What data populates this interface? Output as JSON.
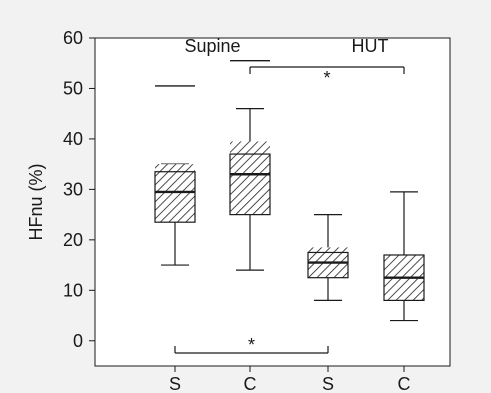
{
  "chart_data": {
    "type": "box",
    "ylabel": "HFnu (%)",
    "ylim": [
      -5,
      60
    ],
    "yticks": [
      0,
      10,
      20,
      30,
      40,
      50,
      60
    ],
    "categories": [
      "S",
      "C",
      "S",
      "C"
    ],
    "groups": [
      {
        "label": "Supine",
        "categories": [
          0,
          1
        ]
      },
      {
        "label": "HUT",
        "categories": [
          2,
          3
        ]
      }
    ],
    "boxes": [
      {
        "category": "S",
        "whisker_low": 15,
        "q1": 23.5,
        "median": 29.5,
        "q3": 33.5,
        "whisker_high": 35,
        "ci_low": 24,
        "ci_high": 35,
        "outliers": [
          50.5
        ]
      },
      {
        "category": "C",
        "whisker_low": 14,
        "q1": 25,
        "median": 33,
        "q3": 37,
        "whisker_high": 46,
        "ci_low": 26.5,
        "ci_high": 39.5,
        "outliers": [
          55.5
        ]
      },
      {
        "category": "S",
        "whisker_low": 8,
        "q1": 12.5,
        "median": 15.5,
        "q3": 17.5,
        "whisker_high": 25,
        "ci_low": 13.5,
        "ci_high": 18.5,
        "outliers": []
      },
      {
        "category": "C",
        "whisker_low": 4,
        "q1": 8,
        "median": 12.5,
        "q3": 17,
        "whisker_high": 29.5,
        "ci_low": 8.5,
        "ci_high": 16,
        "outliers": []
      }
    ],
    "significance": [
      {
        "from": 1,
        "to": 3,
        "label": "*",
        "position": "top"
      },
      {
        "from": 0,
        "to": 2,
        "label": "*",
        "position": "bottom"
      }
    ]
  }
}
